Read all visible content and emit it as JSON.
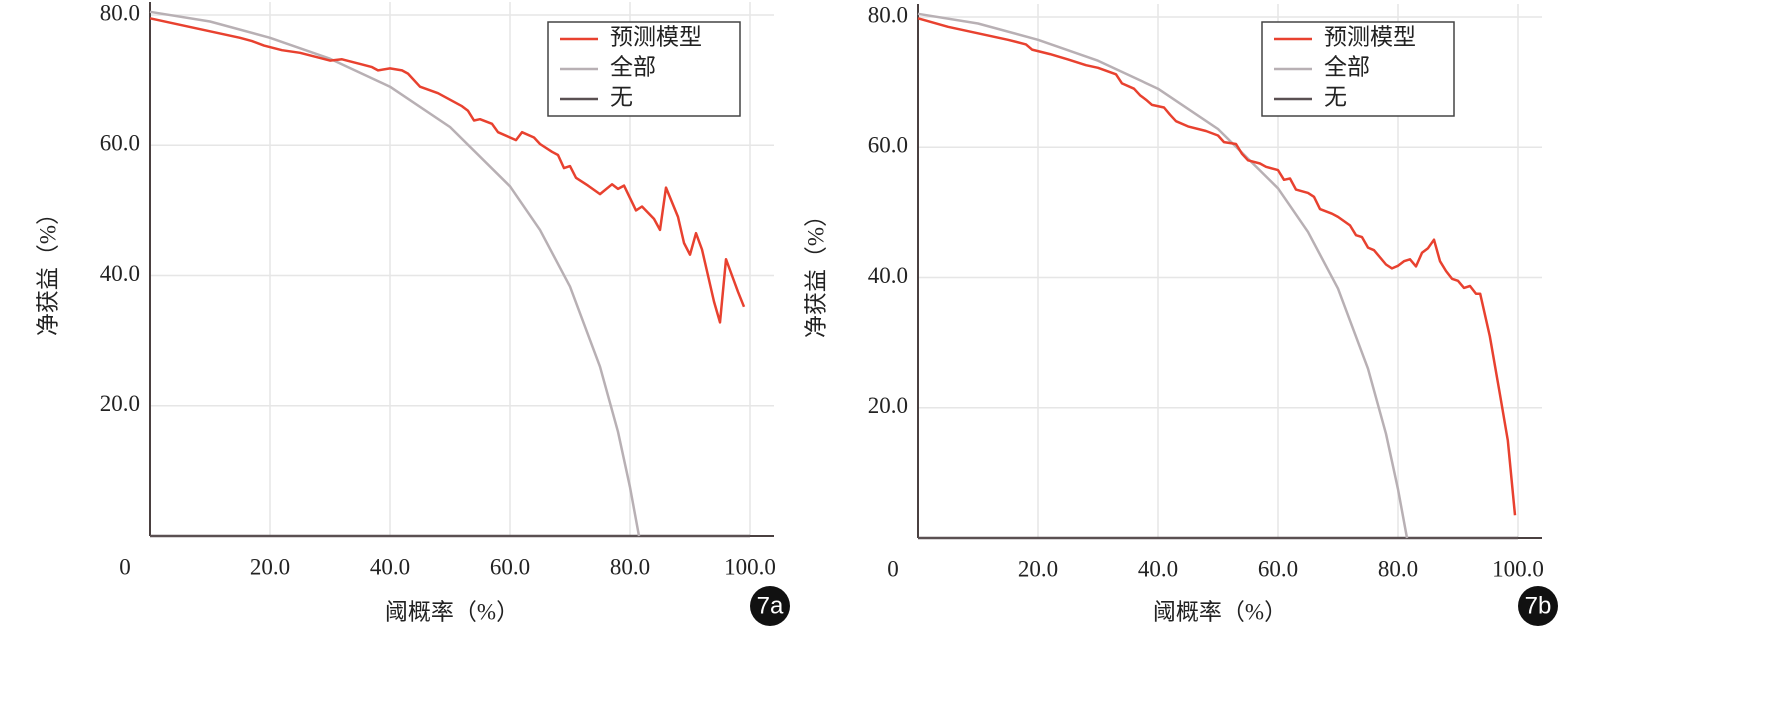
{
  "chart_data": [
    {
      "type": "line",
      "panel_label": "7a",
      "xlabel": "阈概率（%）",
      "ylabel": "净获益（%）",
      "xlim": [
        0,
        104
      ],
      "ylim": [
        0,
        82
      ],
      "xticks": [
        {
          "value": 20,
          "label": "20.0"
        },
        {
          "value": 40,
          "label": "40.0"
        },
        {
          "value": 60,
          "label": "60.0"
        },
        {
          "value": 80,
          "label": "80.0"
        },
        {
          "value": 100,
          "label": "100.0"
        }
      ],
      "yticks": [
        0,
        {
          "value": 20,
          "label": "20.0"
        },
        {
          "value": 40,
          "label": "40.0"
        },
        {
          "value": 60,
          "label": "60.0"
        },
        {
          "value": 80,
          "label": "80.0"
        }
      ],
      "grid": true,
      "legend": "top-right",
      "series": [
        {
          "name": "预测模型",
          "color": "#e8412f",
          "x": [
            0,
            5,
            10,
            15,
            17,
            19,
            22,
            25,
            28,
            30,
            32,
            35,
            37,
            38,
            40,
            42,
            43,
            45,
            48,
            50,
            52,
            53,
            54,
            55,
            57,
            58,
            61,
            62,
            64,
            65,
            67,
            68,
            69,
            70,
            71,
            73,
            75,
            77,
            78,
            79,
            81,
            82,
            84,
            85,
            86,
            88,
            89,
            90,
            91,
            92,
            93,
            94,
            95,
            96,
            97,
            98,
            99
          ],
          "values": [
            79.5,
            78.5,
            77.5,
            76.5,
            76,
            75.3,
            74.6,
            74.2,
            73.5,
            73,
            73.2,
            72.5,
            72,
            71.5,
            71.8,
            71.5,
            71,
            69,
            68,
            67,
            66,
            65.3,
            63.8,
            64,
            63.3,
            62,
            60.8,
            62,
            61.2,
            60.2,
            59,
            58.5,
            56.5,
            56.8,
            55,
            53.8,
            52.5,
            54,
            53.3,
            53.8,
            50,
            50.6,
            48.7,
            47,
            53.5,
            49,
            45,
            43.2,
            46.5,
            44,
            40,
            36,
            32.8,
            42.5,
            40,
            37.5,
            35.2
          ]
        },
        {
          "name": "全部",
          "color": "#b8b0b4",
          "x": [
            0,
            10,
            20,
            30,
            40,
            50,
            60,
            65,
            70,
            75,
            78,
            80,
            81.5
          ],
          "values": [
            80.5,
            79,
            76.5,
            73.3,
            69,
            62.8,
            53.7,
            47,
            38.3,
            26,
            16,
            7.5,
            0
          ]
        },
        {
          "name": "无",
          "color": "#5a5052",
          "x": [
            0,
            100
          ],
          "values": [
            0,
            0
          ]
        }
      ]
    },
    {
      "type": "line",
      "panel_label": "7b",
      "xlabel": "阈概率（%）",
      "ylabel": "净获益（%）",
      "xlim": [
        0,
        104
      ],
      "ylim": [
        0,
        82
      ],
      "xticks": [
        {
          "value": 20,
          "label": "20.0"
        },
        {
          "value": 40,
          "label": "40.0"
        },
        {
          "value": 60,
          "label": "60.0"
        },
        {
          "value": 80,
          "label": "80.0"
        },
        {
          "value": 100,
          "label": "100.0"
        }
      ],
      "yticks": [
        0,
        {
          "value": 20,
          "label": "20.0"
        },
        {
          "value": 40,
          "label": "40.0"
        },
        {
          "value": 60,
          "label": "60.0"
        },
        {
          "value": 80,
          "label": "80.0"
        }
      ],
      "grid": true,
      "legend": "top-right",
      "series": [
        {
          "name": "预测模型",
          "color": "#e8412f",
          "x": [
            0,
            5,
            10,
            15,
            18,
            19,
            22,
            25,
            28,
            30,
            33,
            34,
            36,
            37,
            38,
            39,
            41,
            42,
            43,
            45,
            48,
            50,
            51,
            53,
            54,
            55,
            57,
            58,
            60,
            61,
            62,
            63,
            65,
            66,
            67,
            69,
            70,
            72,
            73,
            74,
            75,
            76,
            78,
            79,
            80,
            81,
            82,
            83,
            84,
            85,
            86,
            87,
            88,
            89,
            90,
            91,
            92,
            93,
            93.7,
            95.3,
            97,
            98.3,
            99.5
          ],
          "values": [
            79.8,
            78.5,
            77.5,
            76.5,
            75.8,
            75,
            74.3,
            73.5,
            72.6,
            72.2,
            71.2,
            69.8,
            69,
            68,
            67.3,
            66.5,
            66.1,
            65,
            64,
            63.2,
            62.5,
            61.8,
            60.8,
            60.5,
            59,
            58,
            57.5,
            57,
            56.5,
            55,
            55.2,
            53.5,
            53,
            52.4,
            50.5,
            49.8,
            49.3,
            48,
            46.5,
            46.2,
            44.6,
            44.2,
            42,
            41.4,
            41.8,
            42.5,
            42.8,
            41.7,
            43.8,
            44.5,
            45.8,
            42.5,
            41,
            39.8,
            39.5,
            38.4,
            38.7,
            37.5,
            37.5,
            31,
            22,
            15,
            3.5
          ]
        },
        {
          "name": "全部",
          "color": "#b8b0b4",
          "x": [
            0,
            10,
            20,
            30,
            40,
            50,
            60,
            65,
            70,
            75,
            78,
            80,
            81.5
          ],
          "values": [
            80.5,
            79,
            76.5,
            73.3,
            69,
            62.8,
            53.7,
            47,
            38.3,
            26,
            16,
            7.5,
            0
          ]
        },
        {
          "name": "无",
          "color": "#5a5052",
          "x": [
            0,
            100
          ],
          "values": [
            0,
            0
          ]
        }
      ]
    }
  ]
}
